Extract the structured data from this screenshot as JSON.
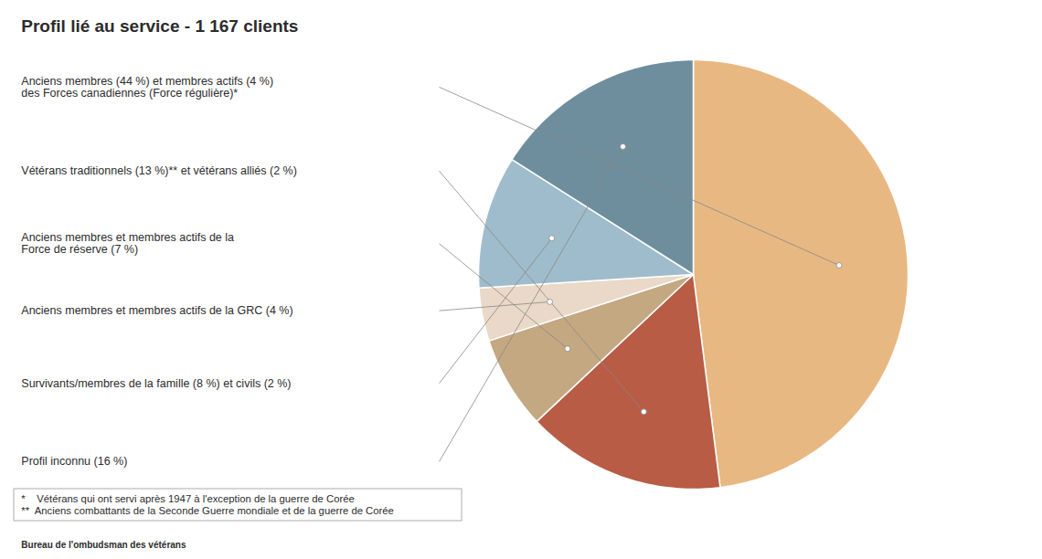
{
  "chart_data": {
    "type": "pie",
    "title": "Profil lié au service - 1 167 clients",
    "categories": [
      "Anciens membres (44 %) et membres actifs (4 %)\ndes Forces canadiennes (Force régulière)*",
      "Vétérans traditionnels (13 %)** et vétérans alliés (2 %)",
      "Anciens membres et membres actifs de la\nForce de réserve (7 %)",
      "Anciens membres et membres actifs de la GRC (4 %)",
      "Survivants/membres de la famille (8 %) et civils (2 %)",
      "Profil inconnu (16 %)"
    ],
    "values": [
      48,
      15,
      7,
      4,
      10,
      16
    ],
    "colors": [
      "#E8B882",
      "#B85C45",
      "#C4A882",
      "#EAD9C8",
      "#9FBCCC",
      "#6E8E9E"
    ],
    "annotations": [
      "*    Vétérans qui ont servi après 1947 à l'exception de la guerre de Corée",
      "**  Anciens combattants de la Seconde Guerre mondiale et de la guerre de Corée",
      "Bureau de l'ombudsman des vétérans"
    ]
  }
}
